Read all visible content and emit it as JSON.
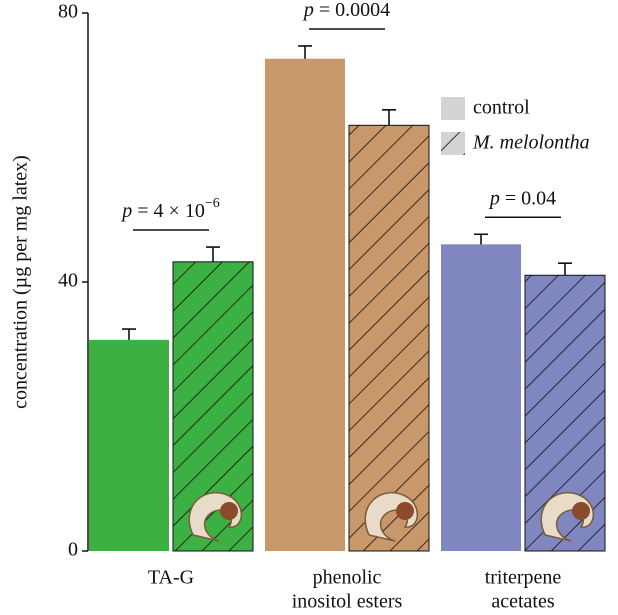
{
  "chart_data": {
    "type": "bar",
    "y_label": "concentration (µg per mg latex)",
    "categories": [
      [
        "TA-G"
      ],
      [
        "phenolic",
        "inositol esters"
      ],
      [
        "triterpene",
        "acetates"
      ]
    ],
    "category_colors": [
      "#3cb043",
      "#c8976a",
      "#7f86c0"
    ],
    "series": [
      {
        "name": "control",
        "color": "#d3d3d3",
        "hatch": false,
        "values": [
          31.4,
          73.2,
          45.6
        ],
        "errors": [
          1.6,
          1.9,
          1.5
        ]
      },
      {
        "name": "M. melolontha",
        "color": "#d3d3d3",
        "hatch": true,
        "values": [
          43.0,
          63.3,
          41.0
        ],
        "errors": [
          2.2,
          2.3,
          1.8
        ]
      }
    ],
    "annotations": [
      {
        "variable": "p",
        "text": " = 4 × 10",
        "superscript": "−6"
      },
      {
        "variable": "p",
        "text": " = 0.0004"
      },
      {
        "variable": "p",
        "text": " = 0.04"
      }
    ],
    "ylim": [
      0,
      80
    ],
    "yticks": [
      0,
      40,
      80
    ],
    "grid": false,
    "legend": "upper right"
  }
}
